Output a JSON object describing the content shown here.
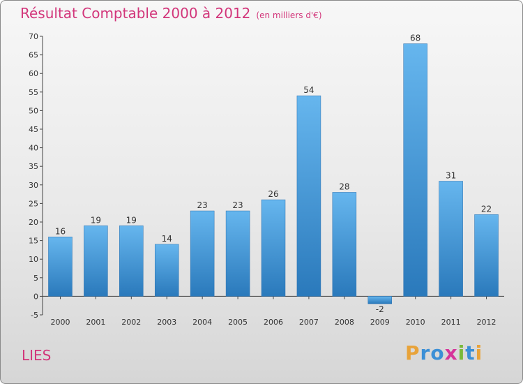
{
  "title": "Résultat Comptable 2000 à 2012",
  "subtitle": "(en milliers d'€)",
  "location": "LIES",
  "brand": {
    "letters": [
      "P",
      "r",
      "o",
      "x",
      "i",
      "t",
      "i"
    ],
    "colors": [
      "#e8a33a",
      "#3b8fd6",
      "#3b8fd6",
      "#d6359a",
      "#79b93a",
      "#3b8fd6",
      "#e8a33a"
    ]
  },
  "colors": {
    "title": "#d2357a",
    "bar_top": "#66b6ee",
    "bar_bottom": "#2a79bb"
  },
  "chart_data": {
    "type": "bar",
    "title": "Résultat Comptable 2000 à 2012",
    "xlabel": "",
    "ylabel": "",
    "ylim": [
      -5,
      70
    ],
    "yticks": [
      -5,
      0,
      5,
      10,
      15,
      20,
      25,
      30,
      35,
      40,
      45,
      50,
      55,
      60,
      65,
      70
    ],
    "grid": false,
    "categories": [
      "2000",
      "2001",
      "2002",
      "2003",
      "2004",
      "2005",
      "2006",
      "2007",
      "2008",
      "2009",
      "2010",
      "2011",
      "2012"
    ],
    "values": [
      16,
      19,
      19,
      14,
      23,
      23,
      26,
      54,
      28,
      -2,
      68,
      31,
      22
    ]
  }
}
